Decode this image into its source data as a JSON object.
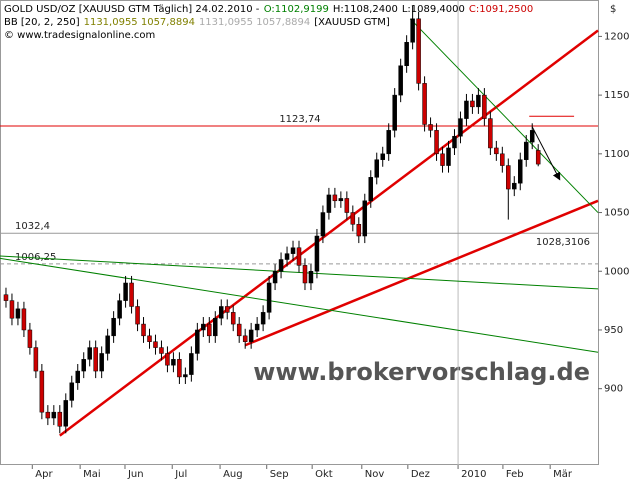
{
  "chart_data": {
    "type": "candlestick",
    "header": [
      [
        {
          "text": "GOLD USD/OZ [XAUUSD GTM  Täglich] 24.02.2010 -",
          "color": "#000000"
        },
        {
          "text": "O:1102,9199",
          "color": "#008000"
        },
        {
          "text": "H:1108,2400",
          "color": "#000000"
        },
        {
          "text": "L:1089,4000",
          "color": "#000000"
        },
        {
          "text": "C:1091,2500",
          "color": "#cc0000"
        }
      ],
      [
        {
          "text": "BB [20, 2, 250]",
          "color": "#000000"
        },
        {
          "text": "1131,0955 1057,8894",
          "color": "#808000"
        },
        {
          "text": "1131,0955 1057,8894",
          "color": "#aaaaaa"
        },
        {
          "text": "[XAUUSD GTM]",
          "color": "#000000"
        }
      ],
      [
        {
          "text": "© www.tradesignalonline.com",
          "color": "#000000"
        }
      ]
    ],
    "watermark": "www.brokervorschlag.de",
    "y_unit": "$",
    "up_color": "#000000",
    "down_color": "#cc0000",
    "open": [
      980,
      975,
      960,
      968,
      950,
      935,
      915,
      880,
      875,
      880,
      868,
      890,
      905,
      915,
      925,
      935,
      915,
      930,
      945,
      960,
      975,
      990,
      970,
      955,
      945,
      940,
      935,
      930,
      920,
      925,
      910,
      912,
      930,
      950,
      955,
      945,
      960,
      970,
      965,
      955,
      945,
      940,
      950,
      955,
      965,
      990,
      1000,
      1010,
      1015,
      1020,
      1005,
      990,
      1000,
      1030,
      1050,
      1065,
      1060,
      1062,
      1050,
      1040,
      1030,
      1060,
      1080,
      1095,
      1100,
      1120,
      1150,
      1175,
      1195,
      1215,
      1160,
      1125,
      1120,
      1100,
      1090,
      1105,
      1115,
      1130,
      1145,
      1140,
      1150,
      1130,
      1105,
      1100,
      1090,
      1070,
      1075,
      1095,
      1110,
      1102.92
    ],
    "high": [
      986,
      981,
      974,
      974,
      956,
      941,
      921,
      886,
      886,
      886,
      896,
      911,
      921,
      931,
      941,
      941,
      936,
      951,
      966,
      981,
      996,
      996,
      976,
      961,
      951,
      946,
      941,
      936,
      931,
      931,
      918,
      936,
      956,
      961,
      961,
      966,
      976,
      976,
      971,
      961,
      951,
      956,
      961,
      971,
      996,
      1006,
      1016,
      1021,
      1026,
      1026,
      1011,
      1006,
      1036,
      1056,
      1071,
      1071,
      1068,
      1068,
      1056,
      1046,
      1066,
      1086,
      1101,
      1106,
      1126,
      1156,
      1181,
      1201,
      1226,
      1221,
      1166,
      1131,
      1126,
      1106,
      1111,
      1121,
      1136,
      1151,
      1151,
      1156,
      1156,
      1136,
      1111,
      1106,
      1096,
      1081,
      1101,
      1116,
      1126,
      1108.24
    ],
    "low": [
      969,
      954,
      954,
      944,
      929,
      909,
      874,
      869,
      869,
      862,
      862,
      884,
      899,
      909,
      919,
      909,
      909,
      924,
      939,
      954,
      969,
      964,
      949,
      939,
      934,
      929,
      924,
      914,
      914,
      904,
      904,
      906,
      924,
      944,
      939,
      939,
      954,
      959,
      949,
      939,
      934,
      934,
      944,
      949,
      959,
      984,
      994,
      1004,
      1009,
      999,
      984,
      984,
      994,
      1024,
      1044,
      1054,
      1054,
      1044,
      1034,
      1024,
      1024,
      1054,
      1074,
      1089,
      1094,
      1114,
      1144,
      1169,
      1189,
      1154,
      1119,
      1114,
      1094,
      1084,
      1084,
      1099,
      1109,
      1124,
      1134,
      1134,
      1124,
      1099,
      1094,
      1084,
      1044,
      1064,
      1069,
      1089,
      1104,
      1089.4
    ],
    "close": [
      975,
      960,
      968,
      950,
      935,
      915,
      880,
      875,
      880,
      868,
      890,
      905,
      915,
      925,
      935,
      915,
      930,
      945,
      960,
      975,
      990,
      970,
      955,
      945,
      940,
      935,
      930,
      920,
      925,
      910,
      912,
      930,
      950,
      955,
      945,
      960,
      970,
      965,
      955,
      945,
      940,
      950,
      955,
      965,
      990,
      1000,
      1010,
      1015,
      1020,
      1005,
      990,
      1000,
      1030,
      1050,
      1065,
      1060,
      1062,
      1050,
      1040,
      1030,
      1060,
      1080,
      1095,
      1100,
      1120,
      1150,
      1175,
      1195,
      1215,
      1160,
      1125,
      1120,
      1100,
      1090,
      1105,
      1115,
      1130,
      1145,
      1140,
      1150,
      1130,
      1105,
      1100,
      1090,
      1070,
      1075,
      1095,
      1110,
      1120,
      1091.25
    ],
    "xlim": [
      -1,
      99
    ],
    "xticks": [
      {
        "value": 4.4,
        "label": "Apr"
      },
      {
        "value": 12.4,
        "label": "Mai"
      },
      {
        "value": 19.9,
        "label": "Jun"
      },
      {
        "value": 27.8,
        "label": "Jul"
      },
      {
        "value": 35.8,
        "label": "Aug"
      },
      {
        "value": 43.6,
        "label": "Sep"
      },
      {
        "value": 51.2,
        "label": "Okt"
      },
      {
        "value": 59.5,
        "label": "Nov"
      },
      {
        "value": 67.2,
        "label": "Dez"
      },
      {
        "value": 75.6,
        "label": "2010"
      },
      {
        "value": 83.1,
        "label": "Feb"
      },
      {
        "value": 91.0,
        "label": "Mär"
      }
    ],
    "ylim": [
      835,
      1231
    ],
    "yticks": [
      900,
      950,
      1000,
      1050,
      1100,
      1150,
      1200
    ],
    "year_grid": true,
    "levels": [
      {
        "value": 1123.74,
        "label": "1123,74",
        "color": "#e00000"
      },
      {
        "value": 1032.4,
        "label": "1032,4",
        "color": "#999999"
      },
      {
        "value": 1006.25,
        "label": "1006,25",
        "color": "#999999",
        "dashed": true
      }
    ],
    "price_labels": [
      {
        "value": 1028.3106,
        "label": "1028,3106",
        "color": "#cc0000"
      }
    ],
    "trend_lines": [
      {
        "color": "#e00000",
        "width": 2.5,
        "x": [
          9,
          99
        ],
        "y": [
          860,
          1205
        ]
      },
      {
        "color": "#e00000",
        "width": 2.5,
        "x": [
          40,
          99
        ],
        "y": [
          937,
          1060
        ]
      },
      {
        "color": "#e00000",
        "width": 1,
        "x": [
          87.5,
          95
        ],
        "y": [
          1132,
          1132
        ]
      },
      {
        "color": "#008000",
        "width": 1,
        "x": [
          67.6,
          99
        ],
        "y": [
          1215,
          1050
        ]
      },
      {
        "color": "#008000",
        "width": 1,
        "x": [
          -1,
          99
        ],
        "y": [
          1013,
          985
        ]
      },
      {
        "color": "#008000",
        "width": 1,
        "x": [
          -1,
          99
        ],
        "y": [
          1011,
          931
        ]
      },
      {
        "color": "#000000",
        "width": 1,
        "x": [
          88,
          92.6
        ],
        "y": [
          1123,
          1078
        ],
        "arrow": true
      }
    ]
  }
}
